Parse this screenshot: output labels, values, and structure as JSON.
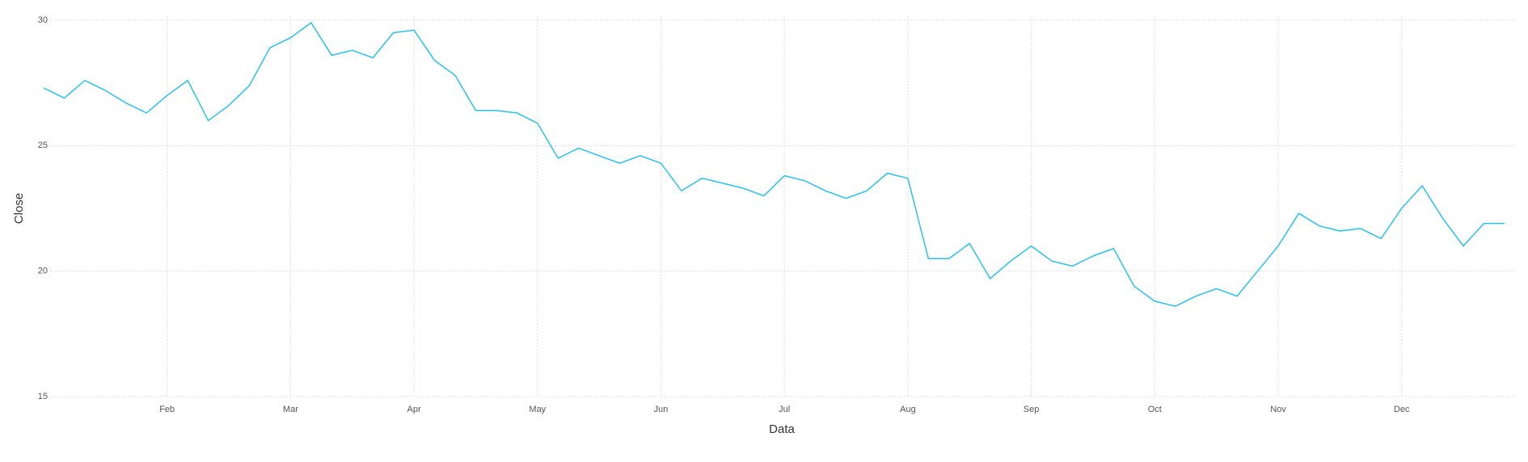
{
  "chart_data": {
    "type": "line",
    "x_label": "Data",
    "y_label": "Close",
    "categories": [
      null,
      null,
      null,
      null,
      null,
      null,
      "Feb",
      null,
      null,
      null,
      null,
      null,
      "Mar",
      null,
      null,
      null,
      null,
      null,
      "Apr",
      null,
      null,
      null,
      null,
      null,
      "May",
      null,
      null,
      null,
      null,
      null,
      "Jun",
      null,
      null,
      null,
      null,
      null,
      "Jul",
      null,
      null,
      null,
      null,
      null,
      "Aug",
      null,
      null,
      null,
      null,
      null,
      "Sep",
      null,
      null,
      null,
      null,
      null,
      "Oct",
      null,
      null,
      null,
      null,
      null,
      "Nov",
      null,
      null,
      null,
      null,
      null,
      "Dec",
      null,
      null,
      null,
      null,
      null
    ],
    "series": [
      {
        "name": "Close",
        "color": "#29c0ea",
        "values": [
          27.3,
          26.9,
          27.6,
          27.2,
          26.7,
          26.3,
          27.0,
          27.6,
          26.0,
          26.6,
          27.4,
          28.9,
          29.3,
          29.9,
          28.6,
          28.8,
          28.5,
          29.5,
          29.6,
          28.4,
          27.8,
          26.4,
          26.4,
          26.3,
          25.9,
          24.5,
          24.9,
          24.6,
          24.3,
          24.6,
          24.3,
          23.2,
          23.7,
          23.5,
          23.3,
          23.0,
          23.8,
          23.6,
          23.2,
          22.9,
          23.2,
          23.9,
          23.7,
          20.5,
          20.5,
          21.1,
          19.7,
          20.4,
          21.0,
          20.4,
          20.2,
          20.6,
          20.9,
          19.4,
          18.8,
          18.6,
          19.0,
          19.3,
          19.0,
          20.0,
          21.0,
          22.3,
          21.8,
          21.6,
          21.7,
          21.3,
          22.5,
          23.4,
          22.1,
          21.0,
          21.9,
          21.9
        ]
      }
    ],
    "ylim": [
      15,
      30
    ],
    "yticks": [
      15,
      20,
      25,
      30
    ],
    "grid": true
  }
}
